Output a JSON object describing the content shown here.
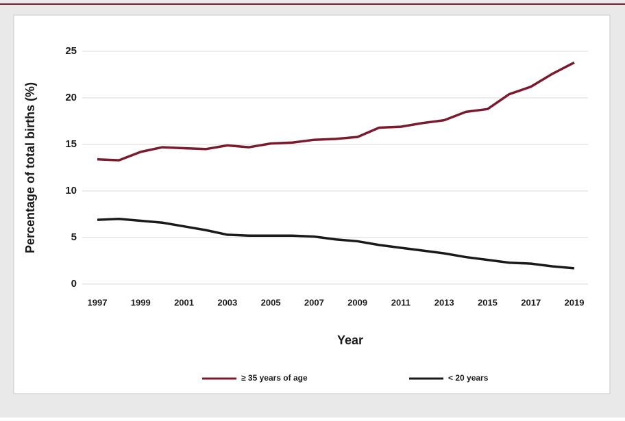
{
  "chart_data": {
    "type": "line",
    "x": [
      1997,
      1998,
      1999,
      2000,
      2001,
      2002,
      2003,
      2004,
      2005,
      2006,
      2007,
      2008,
      2009,
      2010,
      2011,
      2012,
      2013,
      2014,
      2015,
      2016,
      2017,
      2018,
      2019
    ],
    "series": [
      {
        "name": "≥ 35 years of age",
        "color": "#7b1a2c",
        "values": [
          13.4,
          13.3,
          14.2,
          14.7,
          14.6,
          14.5,
          14.9,
          14.7,
          15.1,
          15.2,
          15.5,
          15.6,
          15.8,
          16.8,
          16.9,
          17.3,
          17.6,
          18.5,
          18.8,
          20.4,
          21.2,
          22.6,
          23.8
        ]
      },
      {
        "name": "< 20 years",
        "color": "#1a1a1a",
        "values": [
          6.9,
          7.0,
          6.8,
          6.6,
          6.2,
          5.8,
          5.3,
          5.2,
          5.2,
          5.2,
          5.1,
          4.8,
          4.6,
          4.2,
          3.9,
          3.6,
          3.3,
          2.9,
          2.6,
          2.3,
          2.2,
          1.9,
          1.7
        ]
      }
    ],
    "xlabel": "Year",
    "ylabel": "Percentage of total births (%)",
    "xlim": [
      1997,
      2019
    ],
    "xticks": [
      1997,
      1999,
      2001,
      2003,
      2005,
      2007,
      2009,
      2011,
      2013,
      2015,
      2017,
      2019
    ],
    "ylim": [
      0,
      25
    ],
    "yticks": [
      0,
      5,
      10,
      15,
      20,
      25
    ],
    "grid": true,
    "legend": "bottom"
  }
}
